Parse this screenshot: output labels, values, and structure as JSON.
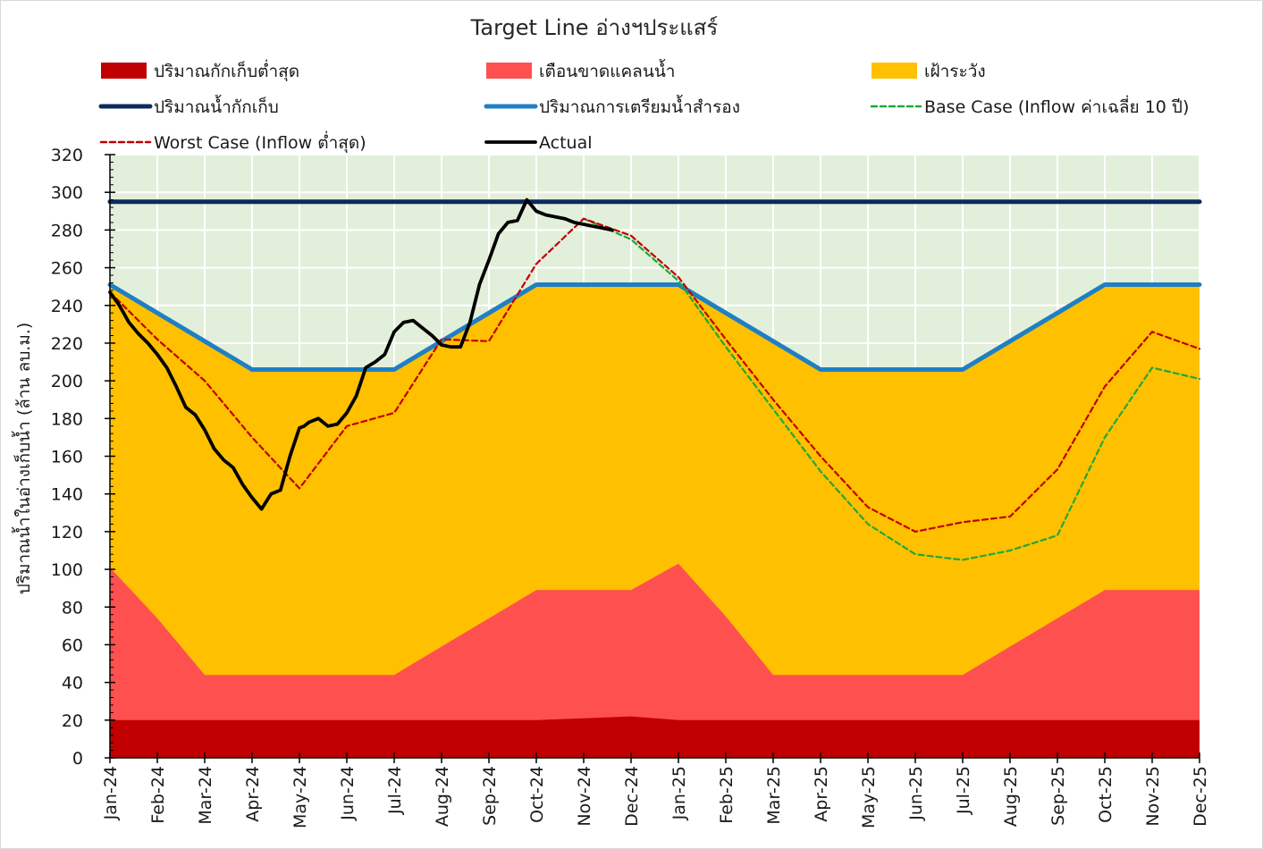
{
  "chart_data": {
    "type": "area",
    "title": "Target Line อ่างฯประแสร์",
    "xlabel": "",
    "ylabel": "ปริมาณน้ำในอ่างเก็บน้ำ (ล้าน ลบ.ม.)",
    "ylim": [
      0,
      320
    ],
    "yticks": [
      0,
      20,
      40,
      60,
      80,
      100,
      120,
      140,
      160,
      180,
      200,
      220,
      240,
      260,
      280,
      300,
      320
    ],
    "categories": [
      "Jan-24",
      "Feb-24",
      "Mar-24",
      "Apr-24",
      "May-24",
      "Jun-24",
      "Jul-24",
      "Aug-24",
      "Sep-24",
      "Oct-24",
      "Nov-24",
      "Dec-24",
      "Jan-25",
      "Feb-25",
      "Mar-25",
      "Apr-25",
      "May-25",
      "Jun-25",
      "Jul-25",
      "Aug-25",
      "Sep-25",
      "Oct-25",
      "Nov-25",
      "Dec-25"
    ],
    "grid": true,
    "legend_position": "top",
    "series": [
      {
        "name": "ปริมาณกักเก็บต่ำสุด",
        "kind": "area",
        "color": "#c00000",
        "x": [
          0,
          1,
          2,
          3,
          4,
          5,
          6,
          7,
          8,
          9,
          10,
          11,
          12,
          13,
          14,
          15,
          16,
          17,
          18,
          19,
          20,
          21,
          22,
          23
        ],
        "values": [
          20,
          20,
          20,
          20,
          20,
          20,
          20,
          20,
          20,
          20,
          21,
          22,
          20,
          20,
          20,
          20,
          20,
          20,
          20,
          20,
          20,
          20,
          20,
          20
        ]
      },
      {
        "name": "เตือนขาดแคลนน้ำ",
        "kind": "area",
        "color": "#ff5050",
        "x": [
          0,
          1,
          2,
          3,
          4,
          5,
          6,
          7,
          8,
          9,
          10,
          11,
          12,
          13,
          14,
          15,
          16,
          17,
          18,
          19,
          20,
          21,
          22,
          23
        ],
        "values": [
          101,
          74,
          44,
          44,
          44,
          44,
          44,
          59,
          74,
          89,
          89,
          89,
          103,
          75,
          44,
          44,
          44,
          44,
          44,
          59,
          74,
          89,
          89,
          89
        ]
      },
      {
        "name": "เฝ้าระวัง",
        "kind": "area",
        "color": "#ffc000",
        "x": [
          0,
          1,
          2,
          3,
          4,
          5,
          6,
          7,
          8,
          9,
          10,
          11,
          12,
          13,
          14,
          15,
          16,
          17,
          18,
          19,
          20,
          21,
          22,
          23
        ],
        "values": [
          251,
          236,
          221,
          206,
          206,
          206,
          206,
          221,
          236,
          251,
          251,
          251,
          251,
          236,
          221,
          206,
          206,
          206,
          206,
          221,
          236,
          251,
          251,
          251
        ]
      },
      {
        "name": "ปริมาณน้ำกักเก็บ",
        "kind": "line",
        "color": "#0d2a5e",
        "x": [
          0,
          23
        ],
        "values": [
          295,
          295
        ]
      },
      {
        "name": "ปริมาณการเตรียมน้ำสำรอง",
        "kind": "line",
        "color": "#1f7fc4",
        "x": [
          0,
          1,
          2,
          3,
          4,
          5,
          6,
          7,
          8,
          9,
          10,
          11,
          12,
          13,
          14,
          15,
          16,
          17,
          18,
          19,
          20,
          21,
          22,
          23
        ],
        "values": [
          251,
          236,
          221,
          206,
          206,
          206,
          206,
          221,
          236,
          251,
          251,
          251,
          251,
          236,
          221,
          206,
          206,
          206,
          206,
          221,
          236,
          251,
          251,
          251
        ]
      },
      {
        "name": "Base Case (Inflow ค่าเฉลี่ย 10 ปี)",
        "kind": "dashed",
        "color": "#1fa83a",
        "x": [
          10,
          11,
          12,
          13,
          14,
          15,
          16,
          17,
          18,
          19,
          20,
          21,
          22,
          23
        ],
        "values": [
          286,
          275,
          253,
          218,
          185,
          152,
          124,
          108,
          105,
          110,
          118,
          170,
          207,
          201
        ]
      },
      {
        "name": "Worst Case (Inflow ต่ำสุด)",
        "kind": "dashed",
        "color": "#c00000",
        "x": [
          0,
          1,
          2,
          3,
          4,
          5,
          6,
          7,
          8,
          9,
          10,
          11,
          12,
          13,
          14,
          15,
          16,
          17,
          18,
          19,
          20,
          21,
          22,
          23
        ],
        "values": [
          247,
          222,
          200,
          170,
          143,
          176,
          183,
          222,
          221,
          262,
          286,
          277,
          255,
          222,
          190,
          160,
          133,
          120,
          125,
          128,
          153,
          197,
          226,
          217
        ]
      },
      {
        "name": "Actual",
        "kind": "bold",
        "color": "#000000",
        "x": [
          0,
          0.2,
          0.4,
          0.6,
          0.8,
          1.0,
          1.2,
          1.4,
          1.6,
          1.8,
          2.0,
          2.2,
          2.4,
          2.6,
          2.8,
          3.0,
          3.2,
          3.4,
          3.6,
          3.8,
          4.0,
          4.1,
          4.2,
          4.3,
          4.4,
          4.5,
          4.6,
          4.8,
          5.0,
          5.2,
          5.4,
          5.6,
          5.8,
          6.0,
          6.2,
          6.4,
          6.6,
          6.8,
          7.0,
          7.2,
          7.4,
          7.6,
          7.8,
          8.0,
          8.2,
          8.4,
          8.6,
          8.8,
          9.0,
          9.2,
          9.4,
          9.6,
          9.7,
          9.8,
          10.0,
          10.2,
          10.4,
          10.6
        ],
        "values": [
          247,
          240,
          231,
          225,
          220,
          214,
          207,
          197,
          186,
          182,
          174,
          164,
          158,
          154,
          145,
          138,
          132,
          140,
          142,
          160,
          175,
          176,
          178,
          179,
          180,
          178,
          176,
          177,
          183,
          192,
          207,
          210,
          214,
          226,
          231,
          232,
          228,
          224,
          219,
          218,
          218,
          231,
          251,
          264,
          278,
          284,
          285,
          296,
          290,
          288,
          287,
          286,
          285,
          284,
          283,
          282,
          281,
          280
        ]
      }
    ]
  }
}
